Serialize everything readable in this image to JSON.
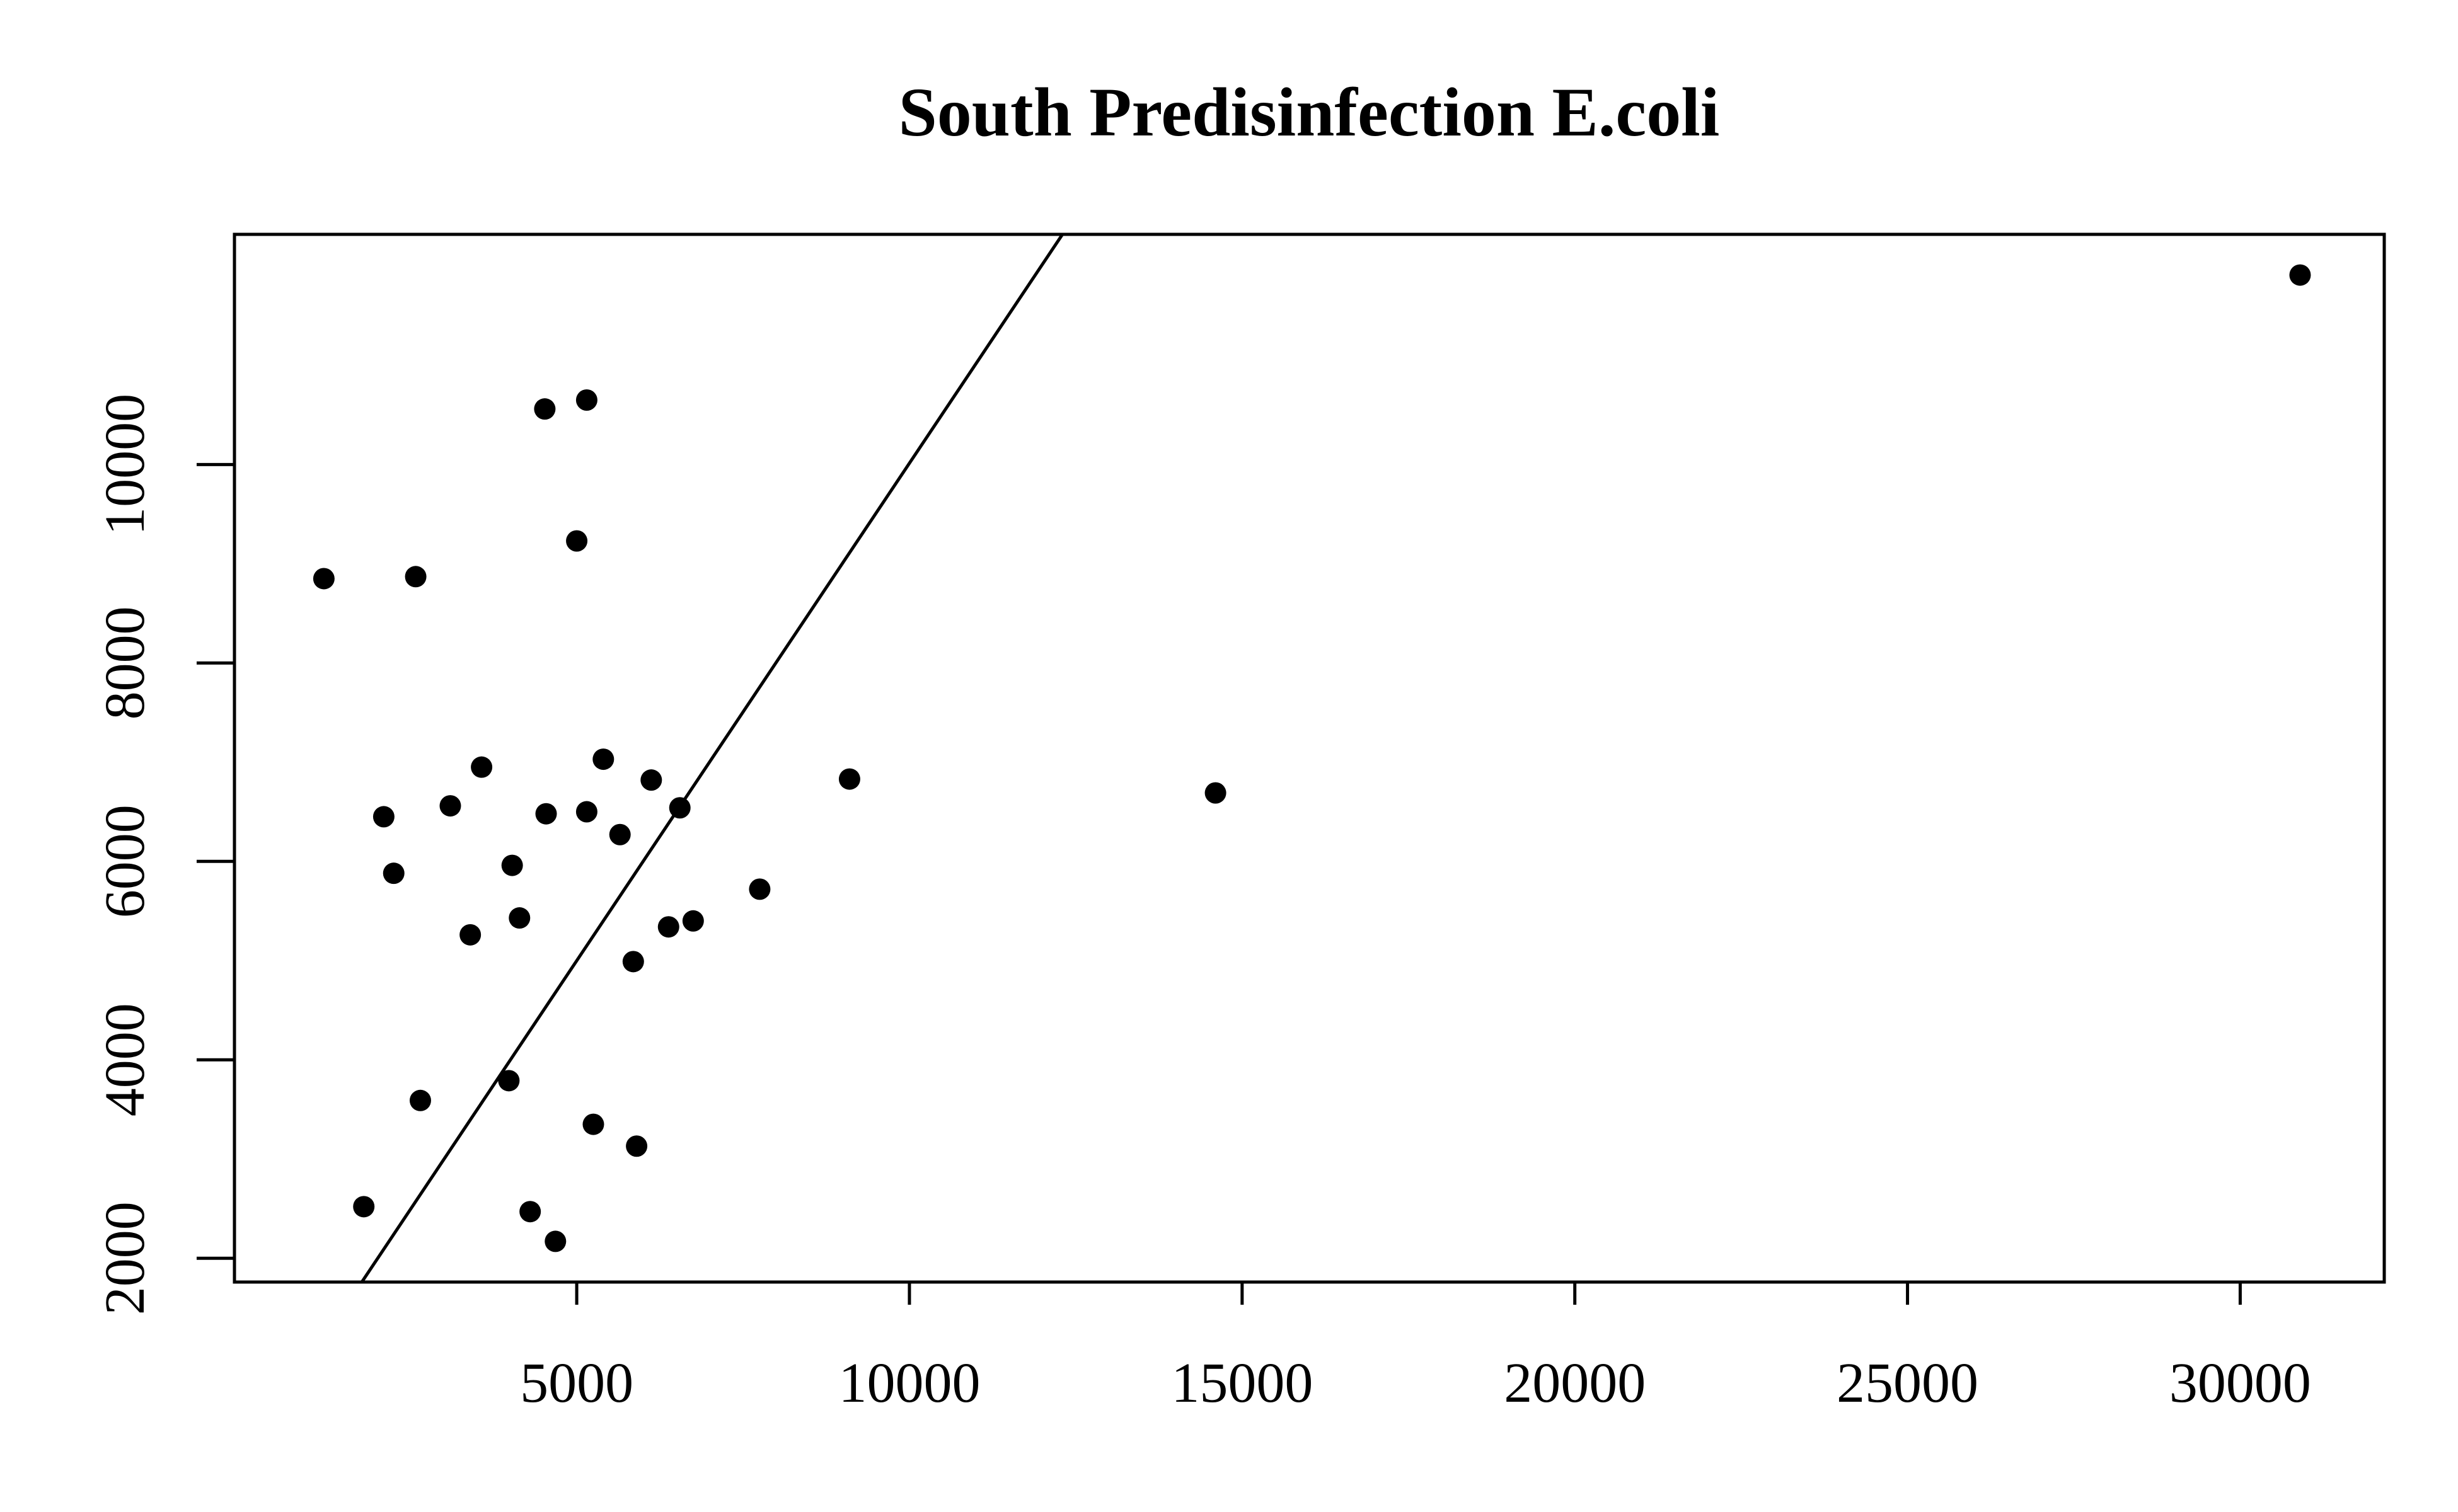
{
  "chart_data": {
    "type": "scatter",
    "title": "South Predisinfection E.coli",
    "xlabel": "",
    "ylabel": "",
    "xlim": [
      -144,
      32165
    ],
    "ylim": [
      1760,
      12320
    ],
    "x_ticks": [
      5000,
      10000,
      15000,
      20000,
      25000,
      30000
    ],
    "x_tick_labels": [
      "5000",
      "10000",
      "15000",
      "20000",
      "25000",
      "30000"
    ],
    "y_ticks": [
      2000,
      4000,
      6000,
      8000,
      10000
    ],
    "y_tick_labels": [
      "2000",
      "4000",
      "6000",
      "8000",
      "10000"
    ],
    "grid": false,
    "marker_color": "#000000",
    "line": {
      "x1": 1770,
      "y1": 1760,
      "x2": 12300,
      "y2": 12320
    },
    "points": [
      {
        "x": 1200,
        "y": 8850
      },
      {
        "x": 1800,
        "y": 2520
      },
      {
        "x": 2100,
        "y": 6450
      },
      {
        "x": 2250,
        "y": 5880
      },
      {
        "x": 2580,
        "y": 8870
      },
      {
        "x": 2650,
        "y": 3590
      },
      {
        "x": 3100,
        "y": 6560
      },
      {
        "x": 3400,
        "y": 5260
      },
      {
        "x": 3570,
        "y": 6950
      },
      {
        "x": 3980,
        "y": 3790
      },
      {
        "x": 4030,
        "y": 5960
      },
      {
        "x": 4140,
        "y": 5430
      },
      {
        "x": 4300,
        "y": 2470
      },
      {
        "x": 4520,
        "y": 10560
      },
      {
        "x": 4540,
        "y": 6480
      },
      {
        "x": 4680,
        "y": 2170
      },
      {
        "x": 5000,
        "y": 9230
      },
      {
        "x": 5150,
        "y": 10650
      },
      {
        "x": 5150,
        "y": 6500
      },
      {
        "x": 5250,
        "y": 3350
      },
      {
        "x": 5400,
        "y": 7030
      },
      {
        "x": 5650,
        "y": 6270
      },
      {
        "x": 5850,
        "y": 4990
      },
      {
        "x": 5900,
        "y": 3130
      },
      {
        "x": 6120,
        "y": 6820
      },
      {
        "x": 6380,
        "y": 5340
      },
      {
        "x": 6550,
        "y": 6540
      },
      {
        "x": 6750,
        "y": 5400
      },
      {
        "x": 7750,
        "y": 5720
      },
      {
        "x": 9100,
        "y": 6830
      },
      {
        "x": 14600,
        "y": 6690
      },
      {
        "x": 30900,
        "y": 11910
      }
    ]
  }
}
